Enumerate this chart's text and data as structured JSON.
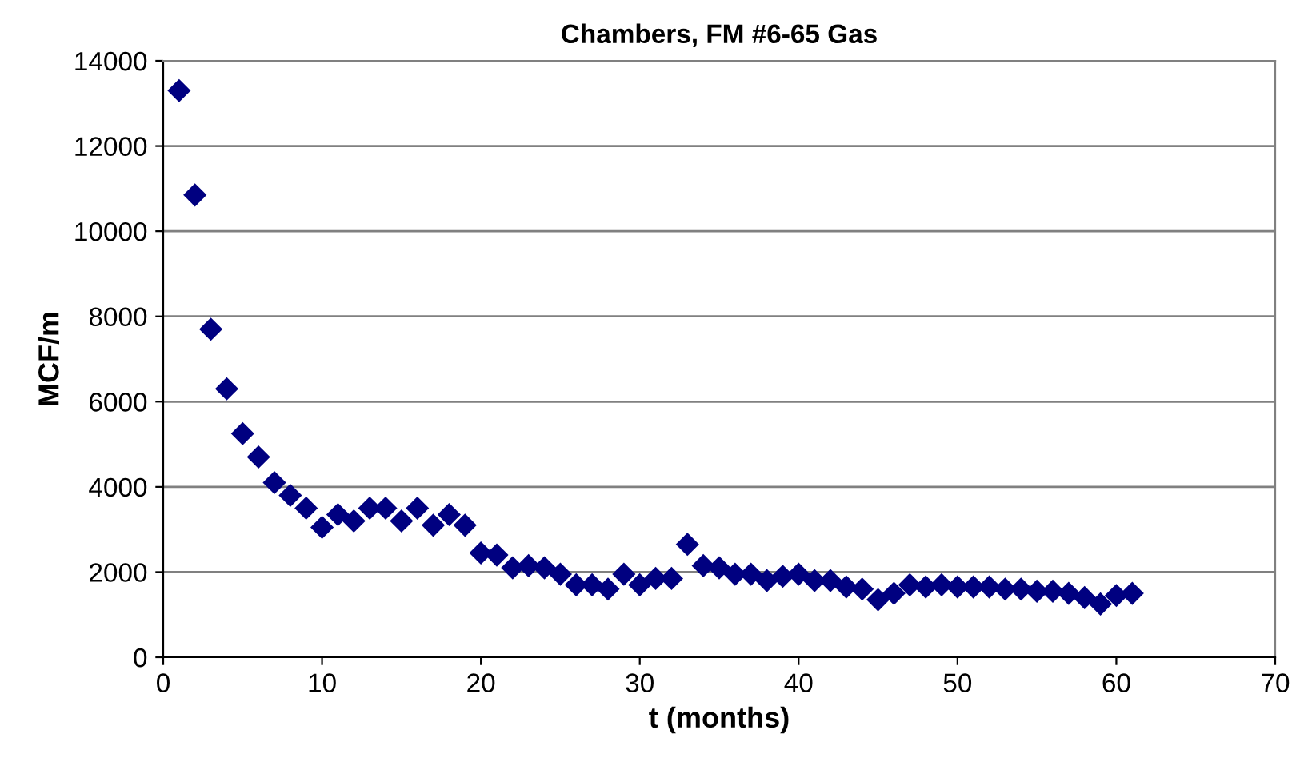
{
  "chart_data": {
    "type": "scatter",
    "title": "Chambers, FM #6-65 Gas",
    "xlabel": "t (months)",
    "ylabel": "MCF/m",
    "x": [
      1,
      2,
      3,
      4,
      5,
      6,
      7,
      8,
      9,
      10,
      11,
      12,
      13,
      14,
      15,
      16,
      17,
      18,
      19,
      20,
      21,
      22,
      23,
      24,
      25,
      26,
      27,
      28,
      29,
      30,
      31,
      32,
      33,
      34,
      35,
      36,
      37,
      38,
      39,
      40,
      41,
      42,
      43,
      44,
      45,
      46,
      47,
      48,
      49,
      50,
      51,
      52,
      53,
      54,
      55,
      56,
      57,
      58,
      59,
      60,
      61
    ],
    "series": [
      {
        "color": "#000080",
        "values": [
          13300,
          10850,
          7700,
          6300,
          5250,
          4700,
          4100,
          3800,
          3500,
          3050,
          3350,
          3200,
          3500,
          3500,
          3200,
          3500,
          3100,
          3350,
          3100,
          2450,
          2400,
          2100,
          2150,
          2100,
          1950,
          1700,
          1700,
          1600,
          1950,
          1700,
          1850,
          1850,
          2650,
          2150,
          2100,
          1950,
          1950,
          1800,
          1900,
          1950,
          1800,
          1800,
          1650,
          1600,
          1350,
          1500,
          1700,
          1650,
          1700,
          1650,
          1650,
          1650,
          1600,
          1600,
          1550,
          1550,
          1500,
          1400,
          1250,
          1450,
          1500
        ]
      }
    ],
    "xlim": [
      0,
      70
    ],
    "xticks": [
      0,
      10,
      20,
      30,
      40,
      50,
      60,
      70
    ],
    "ylim": [
      0,
      14000
    ],
    "yticks": [
      0,
      2000,
      4000,
      6000,
      8000,
      10000,
      12000,
      14000
    ],
    "grid": "y",
    "marker": "diamond"
  }
}
